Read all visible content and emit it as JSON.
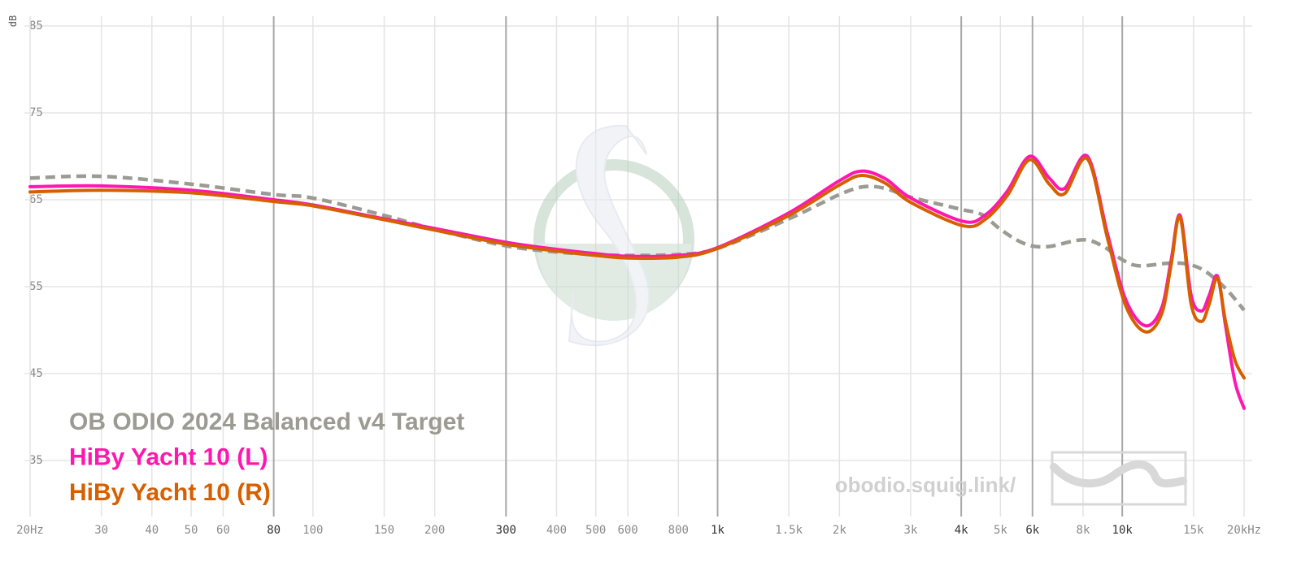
{
  "chart_data": {
    "type": "line",
    "y_label": "dB",
    "watermark": "obodio.squig.link/",
    "xlim": [
      20,
      20000
    ],
    "log_x": true,
    "ylim": [
      29,
      86
    ],
    "yticks": [
      35,
      45,
      55,
      65,
      75,
      85
    ],
    "xticks": [
      {
        "value": 20,
        "label": "20Hz"
      },
      30,
      40,
      50,
      60,
      80,
      100,
      150,
      200,
      300,
      400,
      500,
      600,
      800,
      {
        "value": 1000,
        "label": "1k"
      },
      {
        "value": 1500,
        "label": "1.5k"
      },
      {
        "value": 2000,
        "label": "2k"
      },
      {
        "value": 3000,
        "label": "3k"
      },
      {
        "value": 4000,
        "label": "4k"
      },
      {
        "value": 5000,
        "label": "5k"
      },
      {
        "value": 6000,
        "label": "6k"
      },
      {
        "value": 8000,
        "label": "8k"
      },
      {
        "value": 10000,
        "label": "10k"
      },
      {
        "value": 15000,
        "label": "15k"
      },
      {
        "value": 20000,
        "label": "20kHz"
      }
    ],
    "major_xticks": [
      80,
      300,
      1000,
      4000,
      6000,
      10000
    ],
    "grid": true,
    "series": [
      {
        "name": "OB ODIO 2024 Balanced v4 Target",
        "color": "#9b9b93",
        "dashed": true,
        "x": [
          20,
          30,
          50,
          80,
          100,
          150,
          200,
          300,
          400,
          500,
          600,
          800,
          1000,
          1500,
          2000,
          2300,
          2600,
          3000,
          4000,
          4500,
          5000,
          5700,
          6500,
          8000,
          9000,
          10000,
          11000,
          13000,
          14500,
          16000,
          18000,
          20000
        ],
        "values": [
          67.5,
          67.7,
          66.8,
          65.6,
          65.2,
          63.2,
          61.6,
          59.7,
          59.0,
          58.7,
          58.6,
          58.7,
          59.4,
          62.8,
          65.6,
          66.5,
          66.3,
          65.3,
          63.9,
          63.3,
          61.6,
          60.0,
          59.6,
          60.4,
          59.6,
          58.1,
          57.4,
          57.7,
          57.6,
          56.8,
          54.8,
          52.3
        ]
      },
      {
        "name": "HiBy Yacht 10 (L)",
        "color": "#ff17b0",
        "x": [
          20,
          30,
          50,
          80,
          100,
          150,
          200,
          300,
          400,
          500,
          600,
          800,
          1000,
          1500,
          2000,
          2270,
          2600,
          3000,
          4050,
          4600,
          5200,
          5900,
          6600,
          7200,
          8200,
          9200,
          10200,
          11400,
          12500,
          13200,
          13900,
          14800,
          15700,
          16400,
          17200,
          18000,
          19000,
          20000
        ],
        "values": [
          66.5,
          66.6,
          66.1,
          65.0,
          64.4,
          62.8,
          61.7,
          60.1,
          59.3,
          58.8,
          58.5,
          58.6,
          59.5,
          63.5,
          67.2,
          68.3,
          67.4,
          65.2,
          62.5,
          63.3,
          66.0,
          70.0,
          67.5,
          66.3,
          70.0,
          61.0,
          53.5,
          50.5,
          52.5,
          58.0,
          63.2,
          54.0,
          52.2,
          54.0,
          56.2,
          50.5,
          44.0,
          41.0
        ]
      },
      {
        "name": "HiBy Yacht 10 (R)",
        "color": "#d65f00",
        "x": [
          20,
          30,
          50,
          80,
          100,
          150,
          200,
          300,
          400,
          500,
          600,
          800,
          1000,
          1500,
          2000,
          2270,
          2600,
          3000,
          4050,
          4600,
          5200,
          5900,
          6600,
          7200,
          8200,
          9200,
          10200,
          11400,
          12500,
          13200,
          13900,
          14800,
          15700,
          16400,
          17200,
          18000,
          19000,
          20000
        ],
        "values": [
          65.9,
          66.1,
          65.8,
          64.8,
          64.3,
          62.7,
          61.5,
          59.9,
          59.1,
          58.6,
          58.3,
          58.4,
          59.4,
          63.2,
          66.7,
          67.8,
          66.9,
          64.7,
          62.0,
          62.8,
          65.5,
          69.6,
          66.8,
          65.7,
          69.7,
          60.5,
          52.8,
          49.8,
          51.8,
          57.5,
          63.0,
          53.0,
          51.0,
          53.0,
          56.0,
          51.0,
          46.5,
          44.5
        ]
      }
    ]
  }
}
